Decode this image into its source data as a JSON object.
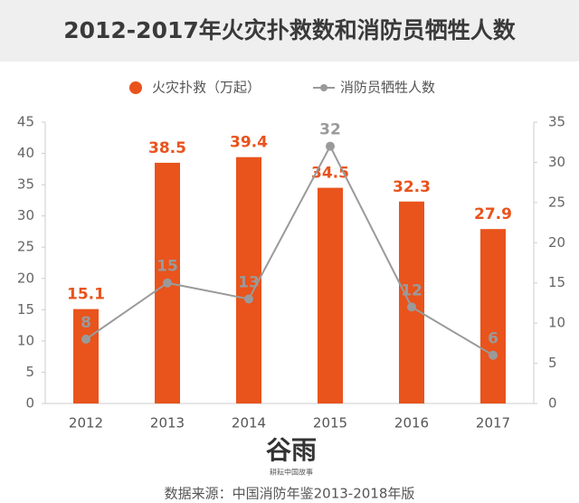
{
  "chart_data": {
    "type": "bar",
    "title": "2012-2017年火灾扑救数和消防员牺牲人数",
    "categories": [
      "2012",
      "2013",
      "2014",
      "2015",
      "2016",
      "2017"
    ],
    "series": [
      {
        "name": "火灾扑救（万起）",
        "type": "bar",
        "color": "#e9531c",
        "values": [
          15.1,
          38.5,
          39.4,
          34.5,
          32.3,
          27.9
        ]
      },
      {
        "name": "消防员牺牲人数",
        "type": "line",
        "axis": "y2",
        "color": "#9a9a9a",
        "values": [
          8,
          15,
          13,
          32,
          12,
          6
        ]
      }
    ],
    "ylim": [
      0,
      45
    ],
    "yticks": [
      0,
      5,
      10,
      15,
      20,
      25,
      30,
      35,
      40,
      45
    ],
    "y2lim": [
      0,
      35
    ],
    "y2ticks": [
      0,
      5,
      10,
      15,
      20,
      25,
      30,
      35
    ],
    "legend": "top",
    "logo": "谷雨",
    "logo_subtitle": "耕耘中国故事",
    "source": "数据来源：中国消防年鉴2013-2018年版"
  }
}
